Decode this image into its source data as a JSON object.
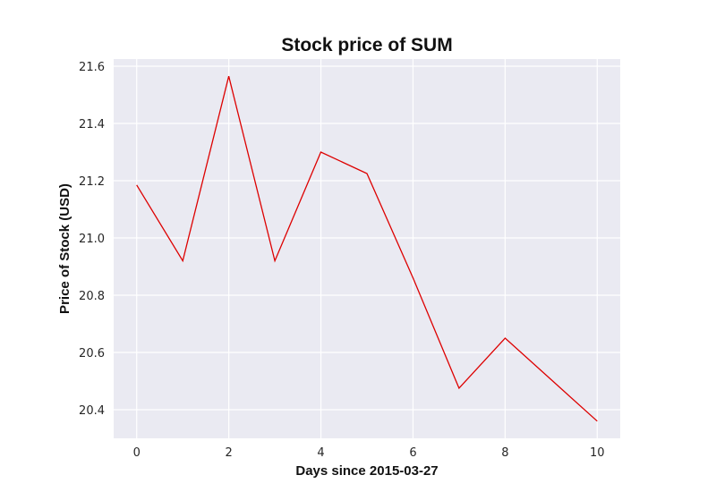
{
  "chart_data": {
    "type": "line",
    "title": "Stock price of SUM",
    "xlabel": "Days since 2015-03-27",
    "ylabel": "Price of Stock (USD)",
    "x": [
      0,
      1,
      2,
      3,
      4,
      5,
      6,
      7,
      8,
      9,
      10
    ],
    "series": [
      {
        "values": [
          21.185,
          20.92,
          21.565,
          20.92,
          21.3,
          21.225,
          20.86,
          20.475,
          20.65,
          20.505,
          20.36
        ]
      }
    ],
    "xlim": [
      -0.5,
      10.5
    ],
    "ylim": [
      20.3,
      21.625
    ],
    "xticks": [
      0,
      2,
      4,
      6,
      8,
      10
    ],
    "yticks": [
      20.4,
      20.6,
      20.8,
      21.0,
      21.2,
      21.4,
      21.6
    ],
    "xtick_labels": [
      "0",
      "2",
      "4",
      "6",
      "8",
      "10"
    ],
    "ytick_labels": [
      "20.4",
      "20.6",
      "20.8",
      "21.0",
      "21.2",
      "21.4",
      "21.6"
    ],
    "grid": true,
    "background_color": "#eaeaf2",
    "grid_color": "#ffffff",
    "line_color": "#dd0000"
  }
}
